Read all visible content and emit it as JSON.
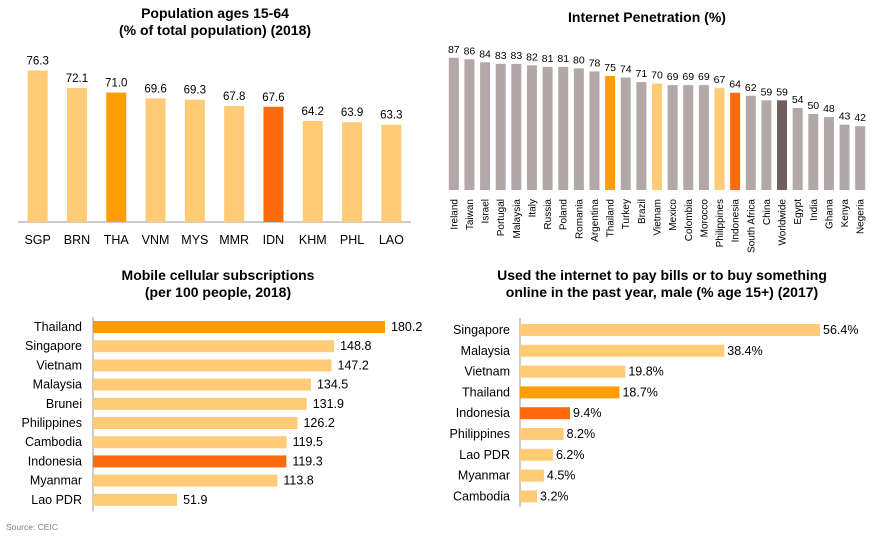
{
  "source": "Source: CEIC",
  "colors": {
    "default": "#FFCB77",
    "thailand": "#FF9D07",
    "indonesia": "#FF6A0D",
    "internet_default": "#B2A8A8",
    "worldwide": "#705E5E"
  },
  "chart_data": [
    {
      "id": "population",
      "type": "bar",
      "title": [
        "Population ages 15-64",
        "(% of total population) (2018)"
      ],
      "categories": [
        "SGP",
        "BRN",
        "THA",
        "VNM",
        "MYS",
        "MMR",
        "IDN",
        "KHM",
        "PHL",
        "LAO"
      ],
      "values": [
        76.3,
        72.1,
        71.0,
        69.6,
        69.3,
        67.8,
        67.6,
        64.2,
        63.9,
        63.3
      ],
      "labels": [
        "76.3",
        "72.1",
        "71.0",
        "69.6",
        "69.3",
        "67.8",
        "67.6",
        "64.2",
        "63.9",
        "63.3"
      ],
      "highlight": {
        "THA": "thailand",
        "IDN": "indonesia"
      },
      "grid": false
    },
    {
      "id": "internet",
      "type": "bar",
      "title": [
        "Internet Penetration (%)"
      ],
      "categories": [
        "Ireland",
        "Taiwan",
        "Israel",
        "Portugal",
        "Malaysia",
        "Italy",
        "Russia",
        "Poland",
        "Romania",
        "Argentina",
        "Thailand",
        "Turkey",
        "Brazil",
        "Vietnam",
        "Mexico",
        "Colombia",
        "Morocco",
        "Philippines",
        "Indonesia",
        "South Africa",
        "China",
        "Worldwide",
        "Egypt",
        "India",
        "Ghana",
        "Kenya",
        "Negeria"
      ],
      "values": [
        87,
        86,
        84,
        83,
        83,
        82,
        81,
        81,
        80,
        78,
        75,
        74,
        71,
        70,
        69,
        69,
        69,
        67,
        64,
        62,
        59,
        59,
        54,
        50,
        48,
        43,
        42
      ],
      "highlight": {
        "Thailand": "thailand",
        "Indonesia": "indonesia",
        "Vietnam": "default",
        "Philippines": "default",
        "Worldwide": "worldwide"
      },
      "grid": false
    },
    {
      "id": "mobile",
      "type": "bar",
      "orientation": "horizontal",
      "title": [
        "Mobile cellular subscriptions",
        "(per 100 people, 2018)"
      ],
      "categories": [
        "Thailand",
        "Singapore",
        "Vietnam",
        "Malaysia",
        "Brunei",
        "Philippines",
        "Cambodia",
        "Indonesia",
        "Myanmar",
        "Lao PDR"
      ],
      "values": [
        180.2,
        148.8,
        147.2,
        134.5,
        131.9,
        126.2,
        119.5,
        119.3,
        113.8,
        51.9
      ],
      "labels": [
        "180.2",
        "148.8",
        "147.2",
        "134.5",
        "131.9",
        "126.2",
        "119.5",
        "119.3",
        "113.8",
        "51.9"
      ],
      "highlight": {
        "Thailand": "thailand",
        "Indonesia": "indonesia"
      },
      "grid": false
    },
    {
      "id": "paybills",
      "type": "bar",
      "orientation": "horizontal",
      "title": [
        "Used the internet to pay bills or to buy something",
        "online in the past year, male (% age 15+) (2017)"
      ],
      "categories": [
        "Singapore",
        "Malaysia",
        "Vietnam",
        "Thailand",
        "Indonesia",
        "Philippines",
        "Lao PDR",
        "Myanmar",
        "Cambodia"
      ],
      "values": [
        56.4,
        38.4,
        19.8,
        18.7,
        9.4,
        8.2,
        6.2,
        4.5,
        3.2
      ],
      "labels": [
        "56.4%",
        "38.4%",
        "19.8%",
        "18.7%",
        "9.4%",
        "8.2%",
        "6.2%",
        "4.5%",
        "3.2%"
      ],
      "highlight": {
        "Thailand": "thailand",
        "Indonesia": "indonesia"
      },
      "grid": false
    }
  ]
}
